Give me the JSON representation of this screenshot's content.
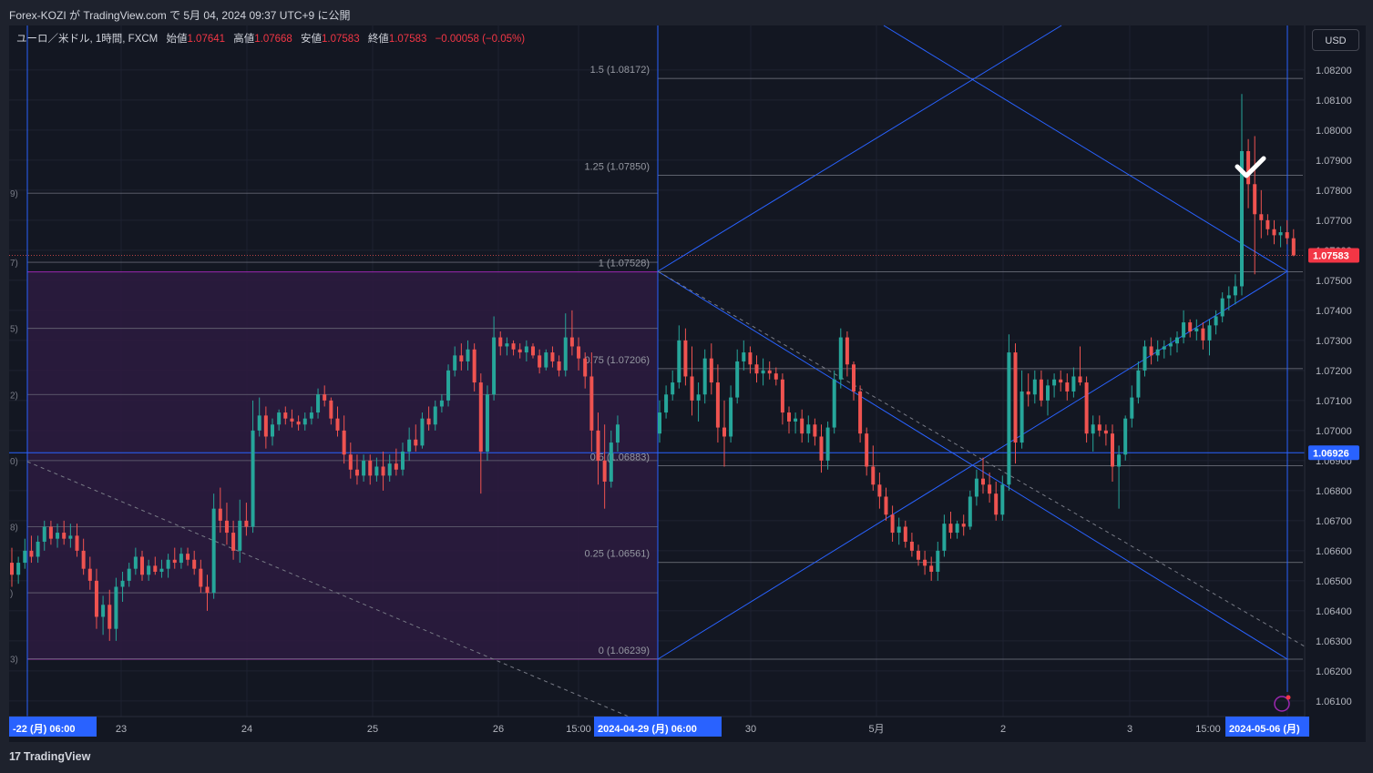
{
  "header": {
    "published": "Forex-KOZI が TradingView.com で 5月 04, 2024 09:37 UTC+9 に公開"
  },
  "legend": {
    "symbol": "ユーロ／米ドル, 1時間, FXCM",
    "open_label": "始値",
    "open": "1.07641",
    "high_label": "高値",
    "high": "1.07668",
    "low_label": "安値",
    "low": "1.07583",
    "close_label": "終値",
    "close": "1.07583",
    "change": "−0.00058 (−0.05%)"
  },
  "currency_button": "USD",
  "footer": {
    "logo": "TradingView"
  },
  "colors": {
    "up": "#26a69a",
    "down": "#ef5350",
    "fib_line": "#787b86",
    "blue": "#2962ff",
    "box_fill": "#2d1b40",
    "box_border": "#9c27b0",
    "background": "#131722"
  },
  "chart_data": {
    "type": "candlestick",
    "symbol": "EURUSD",
    "timeframe": "1h",
    "ylim": [
      1.0605,
      1.083
    ],
    "y_ticks": [
      1.061,
      1.062,
      1.063,
      1.064,
      1.065,
      1.066,
      1.067,
      1.068,
      1.069,
      1.07,
      1.071,
      1.072,
      1.073,
      1.074,
      1.075,
      1.076,
      1.077,
      1.078,
      1.079,
      1.08,
      1.081,
      1.082
    ],
    "y_tick_labels": [
      "1.06100",
      "1.06200",
      "1.06300",
      "1.06400",
      "1.06500",
      "1.06600",
      "1.06700",
      "1.06800",
      "1.06900",
      "1.07000",
      "1.07100",
      "1.07200",
      "1.07300",
      "1.07400",
      "1.07500",
      "1.07600",
      "1.07700",
      "1.07800",
      "1.07900",
      "1.08000",
      "1.08100",
      "1.08200"
    ],
    "x_labels": [
      {
        "text": "-22 (月)  06:00",
        "highlight": true
      },
      {
        "text": "23"
      },
      {
        "text": "24"
      },
      {
        "text": "25"
      },
      {
        "text": "26"
      },
      {
        "text": "15:00"
      },
      {
        "text": "2024-04-29 (月)  06:00",
        "highlight": true
      },
      {
        "text": "30"
      },
      {
        "text": "5月"
      },
      {
        "text": "2"
      },
      {
        "text": "3"
      },
      {
        "text": "15:00"
      },
      {
        "text": "2024-05-06 (月)",
        "highlight": true
      }
    ],
    "last_price": {
      "value": 1.07583,
      "label": "1.07583"
    },
    "crosshair_price": {
      "value": 1.06926,
      "label": "1.06926"
    },
    "fib_right": [
      {
        "ratio": "1.5",
        "price": 1.08172,
        "label": "1.5 (1.08172)"
      },
      {
        "ratio": "1.25",
        "price": 1.0785,
        "label": "1.25 (1.07850)"
      },
      {
        "ratio": "1",
        "price": 1.07528,
        "label": "1 (1.07528)"
      },
      {
        "ratio": "0.75",
        "price": 1.07206,
        "label": "0.75 (1.07206)"
      },
      {
        "ratio": "0.5",
        "price": 1.06883,
        "label": "0.5 (1.06883)"
      },
      {
        "ratio": "0.25",
        "price": 1.06561,
        "label": "0.25 (1.06561)"
      },
      {
        "ratio": "0",
        "price": 1.06239,
        "label": "0 (1.06239)"
      }
    ],
    "fib_left_levels": [
      1.0779,
      1.0756,
      1.0734,
      1.0712,
      1.069,
      1.0668,
      1.0646,
      1.0624
    ],
    "fib_left_labels": [
      "9)",
      "7)",
      "5)",
      "2)",
      "0)",
      "8)",
      ")",
      "3)"
    ],
    "candles": [
      [
        1.0656,
        1.0661,
        1.0648,
        1.0652
      ],
      [
        1.0652,
        1.0658,
        1.0649,
        1.0656
      ],
      [
        1.0656,
        1.0664,
        1.0654,
        1.066
      ],
      [
        1.066,
        1.0665,
        1.0656,
        1.0658
      ],
      [
        1.0658,
        1.0665,
        1.0656,
        1.0663
      ],
      [
        1.0663,
        1.067,
        1.066,
        1.0668
      ],
      [
        1.0668,
        1.067,
        1.0662,
        1.0664
      ],
      [
        1.0664,
        1.0669,
        1.0661,
        1.0666
      ],
      [
        1.0666,
        1.067,
        1.0662,
        1.0664
      ],
      [
        1.0664,
        1.0669,
        1.0661,
        1.0665
      ],
      [
        1.0665,
        1.0669,
        1.0658,
        1.066
      ],
      [
        1.066,
        1.0664,
        1.0652,
        1.0654
      ],
      [
        1.0654,
        1.0658,
        1.0647,
        1.065
      ],
      [
        1.065,
        1.0654,
        1.0634,
        1.0638
      ],
      [
        1.0638,
        1.0645,
        1.0632,
        1.0642
      ],
      [
        1.0642,
        1.0647,
        1.063,
        1.0634
      ],
      [
        1.0634,
        1.0651,
        1.063,
        1.0648
      ],
      [
        1.0648,
        1.0653,
        1.0643,
        1.065
      ],
      [
        1.065,
        1.0656,
        1.0648,
        1.0654
      ],
      [
        1.0654,
        1.0661,
        1.0652,
        1.0658
      ],
      [
        1.0658,
        1.066,
        1.065,
        1.0652
      ],
      [
        1.0652,
        1.0657,
        1.065,
        1.0655
      ],
      [
        1.0655,
        1.0658,
        1.0652,
        1.0653
      ],
      [
        1.0653,
        1.0657,
        1.0651,
        1.0654
      ],
      [
        1.0654,
        1.0659,
        1.0651,
        1.0657
      ],
      [
        1.0657,
        1.0661,
        1.0654,
        1.0656
      ],
      [
        1.0656,
        1.0661,
        1.0654,
        1.0659
      ],
      [
        1.0659,
        1.0661,
        1.0655,
        1.0657
      ],
      [
        1.0657,
        1.066,
        1.0652,
        1.0654
      ],
      [
        1.0654,
        1.0657,
        1.0646,
        1.0648
      ],
      [
        1.0648,
        1.0652,
        1.064,
        1.0646
      ],
      [
        1.0646,
        1.0679,
        1.0644,
        1.0674
      ],
      [
        1.0674,
        1.0681,
        1.0666,
        1.067
      ],
      [
        1.067,
        1.0676,
        1.0662,
        1.0666
      ],
      [
        1.0666,
        1.067,
        1.0657,
        1.066
      ],
      [
        1.066,
        1.0677,
        1.0656,
        1.067
      ],
      [
        1.067,
        1.0676,
        1.0665,
        1.0668
      ],
      [
        1.0668,
        1.071,
        1.0666,
        1.07
      ],
      [
        1.07,
        1.0711,
        1.0698,
        1.0705
      ],
      [
        1.0705,
        1.0708,
        1.0694,
        1.0698
      ],
      [
        1.0698,
        1.0704,
        1.0695,
        1.0702
      ],
      [
        1.0702,
        1.0707,
        1.07,
        1.0706
      ],
      [
        1.0706,
        1.0708,
        1.0702,
        1.0704
      ],
      [
        1.0704,
        1.0707,
        1.0701,
        1.0703
      ],
      [
        1.0703,
        1.0705,
        1.07,
        1.0702
      ],
      [
        1.0702,
        1.0706,
        1.07,
        1.0704
      ],
      [
        1.0704,
        1.0708,
        1.0702,
        1.0706
      ],
      [
        1.0706,
        1.0714,
        1.0704,
        1.0712
      ],
      [
        1.0712,
        1.0715,
        1.0708,
        1.071
      ],
      [
        1.071,
        1.0711,
        1.0702,
        1.0704
      ],
      [
        1.0704,
        1.0708,
        1.0698,
        1.07
      ],
      [
        1.07,
        1.0705,
        1.0689,
        1.0692
      ],
      [
        1.0692,
        1.0696,
        1.0684,
        1.0687
      ],
      [
        1.0687,
        1.0692,
        1.0682,
        1.0685
      ],
      [
        1.0685,
        1.0692,
        1.0683,
        1.069
      ],
      [
        1.069,
        1.0692,
        1.0682,
        1.0685
      ],
      [
        1.0685,
        1.0691,
        1.0683,
        1.0688
      ],
      [
        1.0688,
        1.0693,
        1.068,
        1.0685
      ],
      [
        1.0685,
        1.0692,
        1.0683,
        1.0689
      ],
      [
        1.0689,
        1.0694,
        1.0685,
        1.0687
      ],
      [
        1.0687,
        1.0696,
        1.0685,
        1.0693
      ],
      [
        1.0693,
        1.0701,
        1.069,
        1.0697
      ],
      [
        1.0697,
        1.0702,
        1.0693,
        1.0695
      ],
      [
        1.0695,
        1.0706,
        1.0694,
        1.0704
      ],
      [
        1.0704,
        1.0708,
        1.07,
        1.0702
      ],
      [
        1.0702,
        1.071,
        1.07,
        1.0708
      ],
      [
        1.0708,
        1.0712,
        1.0706,
        1.071
      ],
      [
        1.071,
        1.0722,
        1.0708,
        1.072
      ],
      [
        1.072,
        1.0728,
        1.0718,
        1.0725
      ],
      [
        1.0725,
        1.0729,
        1.072,
        1.0723
      ],
      [
        1.0723,
        1.073,
        1.072,
        1.0727
      ],
      [
        1.0727,
        1.0729,
        1.0713,
        1.0716
      ],
      [
        1.0716,
        1.0719,
        1.0679,
        1.0693
      ],
      [
        1.0693,
        1.0715,
        1.069,
        1.0712
      ],
      [
        1.0712,
        1.0738,
        1.071,
        1.0731
      ],
      [
        1.0731,
        1.0733,
        1.0725,
        1.0728
      ],
      [
        1.0728,
        1.0731,
        1.0725,
        1.0729
      ],
      [
        1.0729,
        1.073,
        1.0725,
        1.0727
      ],
      [
        1.0727,
        1.0729,
        1.0724,
        1.0726
      ],
      [
        1.0726,
        1.073,
        1.0723,
        1.0728
      ],
      [
        1.0728,
        1.0729,
        1.0724,
        1.0725
      ],
      [
        1.0725,
        1.0727,
        1.0719,
        1.0721
      ],
      [
        1.0721,
        1.0727,
        1.072,
        1.0726
      ],
      [
        1.0726,
        1.0728,
        1.0721,
        1.0723
      ],
      [
        1.0723,
        1.0725,
        1.0718,
        1.072
      ],
      [
        1.072,
        1.0739,
        1.0718,
        1.0731
      ],
      [
        1.0731,
        1.074,
        1.0725,
        1.0728
      ],
      [
        1.0728,
        1.0731,
        1.072,
        1.0724
      ],
      [
        1.0724,
        1.0726,
        1.0714,
        1.0718
      ],
      [
        1.0718,
        1.0726,
        1.0693,
        1.07
      ],
      [
        1.07,
        1.0706,
        1.0682,
        1.069
      ],
      [
        1.069,
        1.0702,
        1.0674,
        1.0683
      ],
      [
        1.0683,
        1.07,
        1.0681,
        1.0696
      ],
      [
        1.0696,
        1.0705,
        1.0693,
        1.0702
      ]
    ],
    "candles_right": [
      [
        1.0699,
        1.071,
        1.0696,
        1.0706
      ],
      [
        1.0706,
        1.0715,
        1.0704,
        1.0712
      ],
      [
        1.0712,
        1.072,
        1.071,
        1.0716
      ],
      [
        1.0716,
        1.0735,
        1.0714,
        1.073
      ],
      [
        1.073,
        1.0734,
        1.0715,
        1.0718
      ],
      [
        1.0718,
        1.0728,
        1.0705,
        1.071
      ],
      [
        1.071,
        1.0716,
        1.0703,
        1.0712
      ],
      [
        1.0712,
        1.0727,
        1.0709,
        1.0724
      ],
      [
        1.0724,
        1.0729,
        1.0712,
        1.0716
      ],
      [
        1.0716,
        1.0722,
        1.0696,
        1.0701
      ],
      [
        1.0701,
        1.071,
        1.0688,
        1.0698
      ],
      [
        1.0698,
        1.0715,
        1.0696,
        1.0711
      ],
      [
        1.0711,
        1.0727,
        1.0709,
        1.0723
      ],
      [
        1.0723,
        1.073,
        1.072,
        1.0726
      ],
      [
        1.0726,
        1.0728,
        1.0719,
        1.0722
      ],
      [
        1.0722,
        1.0725,
        1.0716,
        1.0719
      ],
      [
        1.0719,
        1.0724,
        1.0715,
        1.072
      ],
      [
        1.072,
        1.0723,
        1.0717,
        1.0719
      ],
      [
        1.0719,
        1.0721,
        1.0715,
        1.0717
      ],
      [
        1.0717,
        1.0719,
        1.0702,
        1.0706
      ],
      [
        1.0706,
        1.0708,
        1.0699,
        1.0703
      ],
      [
        1.0703,
        1.0706,
        1.0699,
        1.0704
      ],
      [
        1.0704,
        1.0707,
        1.0696,
        1.0699
      ],
      [
        1.0699,
        1.0705,
        1.0696,
        1.0702
      ],
      [
        1.0702,
        1.0704,
        1.0695,
        1.0698
      ],
      [
        1.0698,
        1.0702,
        1.0686,
        1.069
      ],
      [
        1.069,
        1.0703,
        1.0687,
        1.0701
      ],
      [
        1.0701,
        1.072,
        1.0699,
        1.0717
      ],
      [
        1.0717,
        1.0734,
        1.0714,
        1.0731
      ],
      [
        1.0731,
        1.0733,
        1.0718,
        1.0722
      ],
      [
        1.0722,
        1.0723,
        1.071,
        1.0713
      ],
      [
        1.0713,
        1.0715,
        1.0696,
        1.0699
      ],
      [
        1.0699,
        1.0701,
        1.0685,
        1.0688
      ],
      [
        1.0688,
        1.0695,
        1.068,
        1.0682
      ],
      [
        1.0682,
        1.0686,
        1.0674,
        1.0678
      ],
      [
        1.0678,
        1.0681,
        1.067,
        1.0672
      ],
      [
        1.0672,
        1.0675,
        1.0663,
        1.0666
      ],
      [
        1.0666,
        1.0671,
        1.0662,
        1.0668
      ],
      [
        1.0668,
        1.067,
        1.0661,
        1.0663
      ],
      [
        1.0663,
        1.0666,
        1.0658,
        1.066
      ],
      [
        1.066,
        1.0662,
        1.0655,
        1.0657
      ],
      [
        1.0657,
        1.066,
        1.0652,
        1.0655
      ],
      [
        1.0655,
        1.0658,
        1.065,
        1.0653
      ],
      [
        1.0653,
        1.0663,
        1.065,
        1.066
      ],
      [
        1.066,
        1.0672,
        1.0658,
        1.0669
      ],
      [
        1.0669,
        1.0673,
        1.0664,
        1.0666
      ],
      [
        1.0666,
        1.067,
        1.0664,
        1.0669
      ],
      [
        1.0669,
        1.0672,
        1.0665,
        1.0668
      ],
      [
        1.0668,
        1.068,
        1.0667,
        1.0678
      ],
      [
        1.0678,
        1.0687,
        1.0675,
        1.0684
      ],
      [
        1.0684,
        1.0691,
        1.0679,
        1.0682
      ],
      [
        1.0682,
        1.0686,
        1.0676,
        1.0679
      ],
      [
        1.0679,
        1.0683,
        1.067,
        1.0672
      ],
      [
        1.0672,
        1.0685,
        1.067,
        1.0682
      ],
      [
        1.0682,
        1.0732,
        1.068,
        1.0726
      ],
      [
        1.0726,
        1.0729,
        1.0689,
        1.0696
      ],
      [
        1.0696,
        1.072,
        1.0694,
        1.0713
      ],
      [
        1.0713,
        1.0719,
        1.0708,
        1.0712
      ],
      [
        1.0712,
        1.072,
        1.0709,
        1.0717
      ],
      [
        1.0717,
        1.072,
        1.0708,
        1.071
      ],
      [
        1.071,
        1.0717,
        1.0705,
        1.0715
      ],
      [
        1.0715,
        1.0719,
        1.0711,
        1.0717
      ],
      [
        1.0717,
        1.072,
        1.0713,
        1.0716
      ],
      [
        1.0716,
        1.0719,
        1.071,
        1.0713
      ],
      [
        1.0713,
        1.0721,
        1.0711,
        1.0718
      ],
      [
        1.0718,
        1.0728,
        1.0715,
        1.0716
      ],
      [
        1.0716,
        1.0718,
        1.0696,
        1.0699
      ],
      [
        1.0699,
        1.0705,
        1.0693,
        1.0702
      ],
      [
        1.0702,
        1.0705,
        1.0698,
        1.07
      ],
      [
        1.07,
        1.0702,
        1.0695,
        1.0699
      ],
      [
        1.0699,
        1.0702,
        1.0683,
        1.0688
      ],
      [
        1.0688,
        1.0695,
        1.0674,
        1.0692
      ],
      [
        1.0692,
        1.0705,
        1.069,
        1.0704
      ],
      [
        1.0704,
        1.0715,
        1.0701,
        1.0711
      ],
      [
        1.0711,
        1.0723,
        1.0709,
        1.072
      ],
      [
        1.072,
        1.073,
        1.0718,
        1.0728
      ],
      [
        1.0728,
        1.0731,
        1.0722,
        1.0725
      ],
      [
        1.0725,
        1.073,
        1.0723,
        1.0727
      ],
      [
        1.0727,
        1.073,
        1.0724,
        1.0728
      ],
      [
        1.0728,
        1.0731,
        1.0725,
        1.0729
      ],
      [
        1.0729,
        1.0733,
        1.0726,
        1.0731
      ],
      [
        1.0731,
        1.074,
        1.0729,
        1.0736
      ],
      [
        1.0736,
        1.0737,
        1.0731,
        1.0733
      ],
      [
        1.0733,
        1.0737,
        1.073,
        1.0734
      ],
      [
        1.0734,
        1.0736,
        1.0727,
        1.073
      ],
      [
        1.073,
        1.0737,
        1.0725,
        1.0735
      ],
      [
        1.0735,
        1.074,
        1.0732,
        1.0738
      ],
      [
        1.0738,
        1.0746,
        1.0736,
        1.0744
      ],
      [
        1.0744,
        1.0748,
        1.074,
        1.0745
      ],
      [
        1.0745,
        1.0752,
        1.0742,
        1.0748
      ],
      [
        1.0748,
        1.0812,
        1.0745,
        1.0793
      ],
      [
        1.0793,
        1.0797,
        1.0774,
        1.0782
      ],
      [
        1.0782,
        1.0798,
        1.0752,
        1.0772
      ],
      [
        1.0772,
        1.078,
        1.0764,
        1.077
      ],
      [
        1.077,
        1.0772,
        1.0765,
        1.0767
      ],
      [
        1.0767,
        1.077,
        1.0762,
        1.0765
      ],
      [
        1.0765,
        1.0768,
        1.0761,
        1.0766
      ],
      [
        1.0766,
        1.077,
        1.0762,
        1.0764
      ],
      [
        1.0764,
        1.0767,
        1.0758,
        1.07583
      ]
    ]
  }
}
